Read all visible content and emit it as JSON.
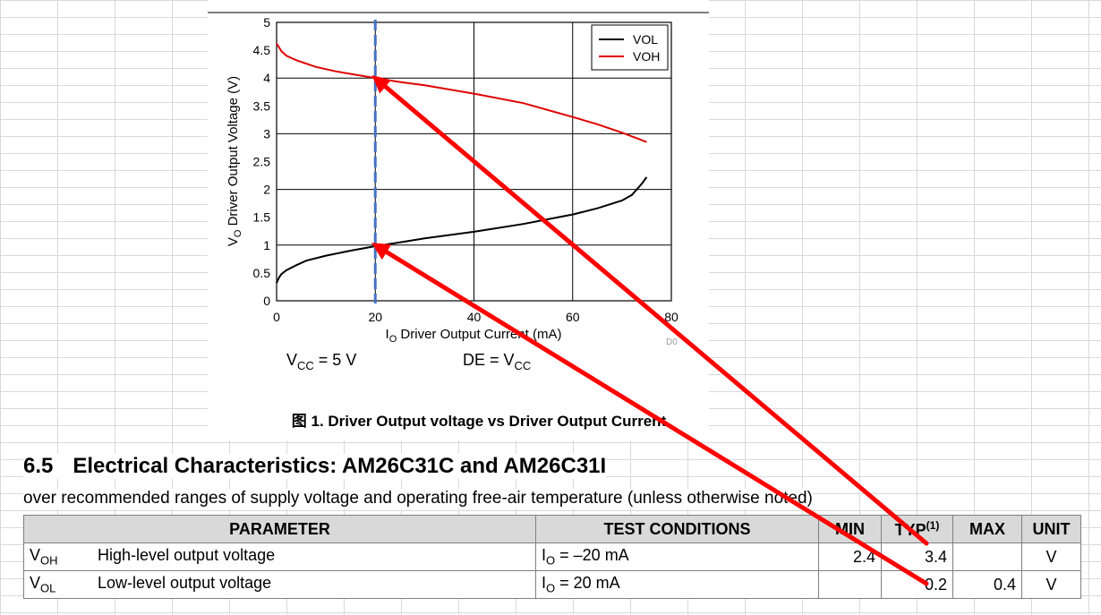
{
  "chart_data": {
    "type": "line",
    "ylabel_main": "V",
    "ylabel_sub": "O",
    "ylabel_rest": " Driver Output Voltage (V)",
    "xlabel_main": "I",
    "xlabel_sub": "O",
    "xlabel_rest": " Driver Output Current (mA)",
    "xlim": [
      0,
      80
    ],
    "ylim": [
      0,
      5
    ],
    "x_ticks": [
      "0",
      "20",
      "40",
      "60",
      "80"
    ],
    "y_ticks": [
      "0",
      "0.5",
      "1",
      "1.5",
      "2",
      "2.5",
      "3",
      "3.5",
      "4",
      "4.5",
      "5"
    ],
    "grid": true,
    "legend_position": "top-right",
    "series": [
      {
        "name": "VOL",
        "color": "#000000",
        "x": [
          0,
          0.5,
          1,
          2,
          4,
          6,
          10,
          15,
          20,
          25,
          30,
          40,
          50,
          60,
          65,
          70,
          72,
          74,
          75
        ],
        "y": [
          0.32,
          0.42,
          0.48,
          0.55,
          0.64,
          0.72,
          0.81,
          0.9,
          0.98,
          1.05,
          1.12,
          1.24,
          1.38,
          1.55,
          1.66,
          1.8,
          1.9,
          2.1,
          2.22
        ]
      },
      {
        "name": "VOH",
        "color": "#e00000",
        "x": [
          0,
          0.5,
          1,
          2,
          4,
          8,
          12,
          16,
          20,
          25,
          30,
          40,
          50,
          60,
          65,
          70,
          73,
          75
        ],
        "y": [
          4.62,
          4.55,
          4.48,
          4.4,
          4.32,
          4.2,
          4.12,
          4.06,
          4.0,
          3.93,
          3.87,
          3.72,
          3.55,
          3.3,
          3.17,
          3.02,
          2.92,
          2.85
        ]
      }
    ],
    "marker_line": {
      "x": 20,
      "color": "#4472c4"
    },
    "marker_points": [
      {
        "x": 20,
        "y": 4.0
      },
      {
        "x": 20,
        "y": 1.0
      }
    ],
    "watermark": "D0",
    "conditions": [
      {
        "main": "V",
        "sub": "CC",
        "rest": " = 5 V"
      },
      {
        "main": "DE = V",
        "sub": "CC",
        "rest": ""
      }
    ],
    "caption": "图 1. Driver Output voltage vs Driver Output Current",
    "arrow_color": "#ff0000"
  },
  "section": {
    "number": "6.5",
    "title": "Electrical Characteristics: AM26C31C and AM26C31I",
    "subtitle": "over recommended ranges of supply voltage and operating free-air temperature (unless otherwise noted)"
  },
  "table": {
    "headers": {
      "parameter": "PARAMETER",
      "conditions": "TEST CONDITIONS",
      "min": "MIN",
      "typ": "TYP",
      "typ_note": "(1)",
      "max": "MAX",
      "unit": "UNIT"
    },
    "rows": [
      {
        "sym": "V",
        "sym_sub": "OH",
        "desc": "High-level output voltage",
        "cond": "I",
        "cond_sub": "O",
        "cond_rest": " = –20 mA",
        "min": "2.4",
        "typ": "3.4",
        "max": "",
        "unit": "V"
      },
      {
        "sym": "V",
        "sym_sub": "OL",
        "desc": "Low-level output voltage",
        "cond": "I",
        "cond_sub": "O",
        "cond_rest": " = 20 mA",
        "min": "",
        "typ": "0.2",
        "max": "0.4",
        "unit": "V"
      }
    ]
  }
}
